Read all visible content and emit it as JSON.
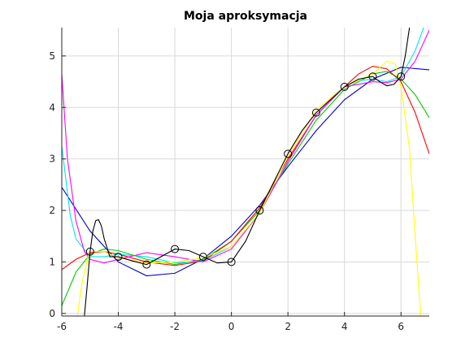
{
  "chart_data": {
    "type": "line",
    "title": "Moja aproksymacja",
    "xlabel": "",
    "ylabel": "",
    "xlim": [
      -6,
      7
    ],
    "ylim": [
      -0.05,
      5.55
    ],
    "xticks": [
      -6,
      -4,
      -2,
      0,
      2,
      4,
      6
    ],
    "yticks": [
      0,
      1,
      2,
      3,
      4,
      5
    ],
    "xtick_labels": [
      "-6",
      "-4",
      "-2",
      "0",
      "2",
      "4",
      "6"
    ],
    "ytick_labels": [
      "0",
      "1",
      "2",
      "3",
      "4",
      "5"
    ],
    "grid": true,
    "legend": "none",
    "data_points": {
      "x": [
        -5,
        -4,
        -3,
        -2,
        -1,
        0,
        1,
        2,
        3,
        4,
        5,
        6
      ],
      "y": [
        1.2,
        1.1,
        0.95,
        1.25,
        1.1,
        1.0,
        2.0,
        3.1,
        3.9,
        4.4,
        4.6,
        4.6
      ],
      "marker": "circle",
      "color": "#000000"
    },
    "series": [
      {
        "color": "#0000cc",
        "x": [
          -6,
          -5,
          -4,
          -3,
          -2,
          -1,
          0,
          1,
          2,
          3,
          4,
          5,
          6,
          7
        ],
        "y": [
          2.45,
          1.6,
          1.0,
          0.73,
          0.78,
          1.06,
          1.5,
          2.1,
          2.85,
          3.55,
          4.15,
          4.55,
          4.78,
          4.73
        ]
      },
      {
        "color": "#00cc00",
        "x": [
          -6,
          -5.5,
          -5,
          -4.5,
          -4,
          -3,
          -2,
          -1,
          0,
          1,
          2,
          3,
          4,
          5,
          5.5,
          6,
          6.5,
          7
        ],
        "y": [
          0.15,
          0.8,
          1.15,
          1.25,
          1.22,
          1.05,
          0.95,
          1.05,
          1.4,
          2.0,
          2.9,
          3.75,
          4.35,
          4.65,
          4.7,
          4.55,
          4.25,
          3.8
        ]
      },
      {
        "color": "#ff0000",
        "x": [
          -6,
          -5.5,
          -5,
          -4.5,
          -4,
          -3,
          -2,
          -1,
          0,
          1,
          2,
          3,
          4,
          4.5,
          5,
          5.5,
          6,
          6.5,
          7
        ],
        "y": [
          0.85,
          1.05,
          1.18,
          1.2,
          1.15,
          1.0,
          0.93,
          1.02,
          1.4,
          2.05,
          3.0,
          3.85,
          4.4,
          4.65,
          4.8,
          4.75,
          4.5,
          3.9,
          3.1
        ]
      },
      {
        "color": "#00e5e5",
        "x": [
          -6,
          -5.7,
          -5.5,
          -5,
          -4.5,
          -4,
          -3,
          -2,
          -1,
          0,
          1,
          2,
          3,
          4,
          4.5,
          5,
          5.5,
          6,
          6.5,
          6.8
        ],
        "y": [
          3.25,
          1.9,
          1.45,
          1.1,
          1.1,
          1.15,
          1.1,
          0.98,
          1.02,
          1.3,
          1.95,
          2.95,
          3.85,
          4.4,
          4.52,
          4.55,
          4.5,
          4.6,
          5.1,
          5.55
        ]
      },
      {
        "color": "#ff00ff",
        "x": [
          -6,
          -5.8,
          -5.5,
          -5.2,
          -5,
          -4.5,
          -4,
          -3,
          -2,
          -1,
          0,
          1,
          2,
          3,
          4,
          5,
          5.5,
          6,
          6.5,
          7
        ],
        "y": [
          4.65,
          3.0,
          1.8,
          1.2,
          1.05,
          0.98,
          1.05,
          1.18,
          1.1,
          1.0,
          1.25,
          1.95,
          2.95,
          3.85,
          4.4,
          4.5,
          4.48,
          4.55,
          4.9,
          5.5
        ]
      },
      {
        "color": "#ffff00",
        "x": [
          -5.45,
          -5.3,
          -5.1,
          -5,
          -4.5,
          -4,
          -3,
          -2,
          -1,
          0,
          1,
          2,
          3,
          4,
          5,
          5.5,
          5.8,
          6,
          6.3,
          6.5,
          6.7
        ],
        "y": [
          -0.05,
          0.55,
          1.05,
          1.2,
          1.2,
          1.08,
          0.98,
          1.0,
          1.08,
          1.3,
          1.95,
          3.05,
          3.95,
          4.4,
          4.65,
          4.9,
          4.85,
          4.4,
          3.2,
          1.5,
          -0.05
        ]
      },
      {
        "color": "#000000",
        "x": [
          -5.2,
          -5.1,
          -5,
          -4.9,
          -4.8,
          -4.7,
          -4.6,
          -4.5,
          -4.3,
          -4,
          -3.5,
          -3,
          -2.5,
          -2,
          -1.5,
          -1,
          -0.5,
          0,
          0.5,
          1,
          1.5,
          2,
          2.5,
          3,
          3.5,
          4,
          4.5,
          5,
          5.25,
          5.5,
          5.75,
          6,
          6.15,
          6.3
        ],
        "y": [
          -0.05,
          0.55,
          1.2,
          1.6,
          1.8,
          1.82,
          1.7,
          1.45,
          1.1,
          1.1,
          1.02,
          0.95,
          1.1,
          1.25,
          1.22,
          1.1,
          0.98,
          1.0,
          1.4,
          2.0,
          2.55,
          3.1,
          3.55,
          3.9,
          4.15,
          4.4,
          4.55,
          4.6,
          4.5,
          4.42,
          4.45,
          4.6,
          5.0,
          5.55
        ]
      }
    ]
  }
}
